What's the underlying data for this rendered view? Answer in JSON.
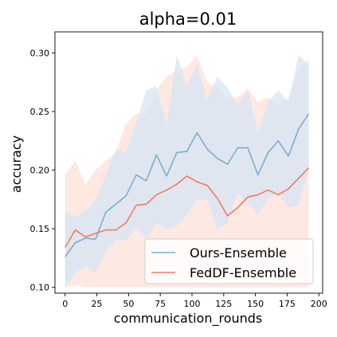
{
  "chart_data": {
    "type": "line",
    "title": "alpha=0.01",
    "xlabel": "communication_rounds",
    "ylabel": "accuracy",
    "xlim": [
      -8,
      203
    ],
    "ylim": [
      0.095,
      0.318
    ],
    "xticks": [
      0,
      25,
      50,
      75,
      100,
      125,
      150,
      175,
      200
    ],
    "yticks": [
      0.1,
      0.15,
      0.2,
      0.25,
      0.3
    ],
    "xtick_labels": [
      "0",
      "25",
      "50",
      "75",
      "100",
      "125",
      "150",
      "175",
      "200"
    ],
    "ytick_labels": [
      "0.10",
      "0.15",
      "0.20",
      "0.25",
      "0.30"
    ],
    "grid": false,
    "legend_position": "lower-right",
    "x": [
      0,
      8,
      16,
      24,
      32,
      40,
      48,
      56,
      64,
      72,
      80,
      88,
      96,
      104,
      112,
      120,
      128,
      136,
      144,
      152,
      160,
      168,
      176,
      184,
      192
    ],
    "series": [
      {
        "name": "Ours-Ensemble",
        "color": "#7aadd0",
        "band_color": "#d6e6f3",
        "values": [
          0.126,
          0.138,
          0.142,
          0.141,
          0.164,
          0.171,
          0.178,
          0.196,
          0.191,
          0.213,
          0.195,
          0.215,
          0.216,
          0.232,
          0.218,
          0.21,
          0.205,
          0.219,
          0.219,
          0.196,
          0.215,
          0.225,
          0.212,
          0.235,
          0.248
        ],
        "upper": [
          0.165,
          0.16,
          0.165,
          0.175,
          0.195,
          0.218,
          0.215,
          0.24,
          0.268,
          0.272,
          0.238,
          0.298,
          0.272,
          0.29,
          0.26,
          0.28,
          0.27,
          0.256,
          0.268,
          0.232,
          0.258,
          0.268,
          0.258,
          0.298,
          0.29
        ],
        "lower": [
          0.1,
          0.112,
          0.118,
          0.112,
          0.13,
          0.14,
          0.14,
          0.15,
          0.142,
          0.155,
          0.15,
          0.152,
          0.162,
          0.175,
          0.175,
          0.15,
          0.155,
          0.18,
          0.172,
          0.162,
          0.176,
          0.18,
          0.168,
          0.17,
          0.2
        ]
      },
      {
        "name": "FedDF-Ensemble",
        "color": "#f47a5e",
        "band_color": "#fde2db",
        "values": [
          0.134,
          0.149,
          0.143,
          0.146,
          0.149,
          0.149,
          0.155,
          0.17,
          0.171,
          0.179,
          0.183,
          0.188,
          0.195,
          0.19,
          0.187,
          0.176,
          0.161,
          0.168,
          0.177,
          0.179,
          0.183,
          0.179,
          0.184,
          0.193,
          0.202
        ],
        "upper": [
          0.196,
          0.208,
          0.188,
          0.2,
          0.208,
          0.215,
          0.24,
          0.248,
          0.248,
          0.268,
          0.28,
          0.285,
          0.288,
          0.298,
          0.275,
          0.27,
          0.262,
          0.262,
          0.27,
          0.258,
          0.262,
          0.255,
          0.262,
          0.285,
          0.295
        ],
        "lower": [
          0.1,
          0.102,
          0.1,
          0.1,
          0.1,
          0.1,
          0.1,
          0.1,
          0.1,
          0.1,
          0.1,
          0.1,
          0.1,
          0.1,
          0.1,
          0.1,
          0.1,
          0.1,
          0.1,
          0.1,
          0.1,
          0.1,
          0.1,
          0.1,
          0.1
        ]
      }
    ]
  }
}
